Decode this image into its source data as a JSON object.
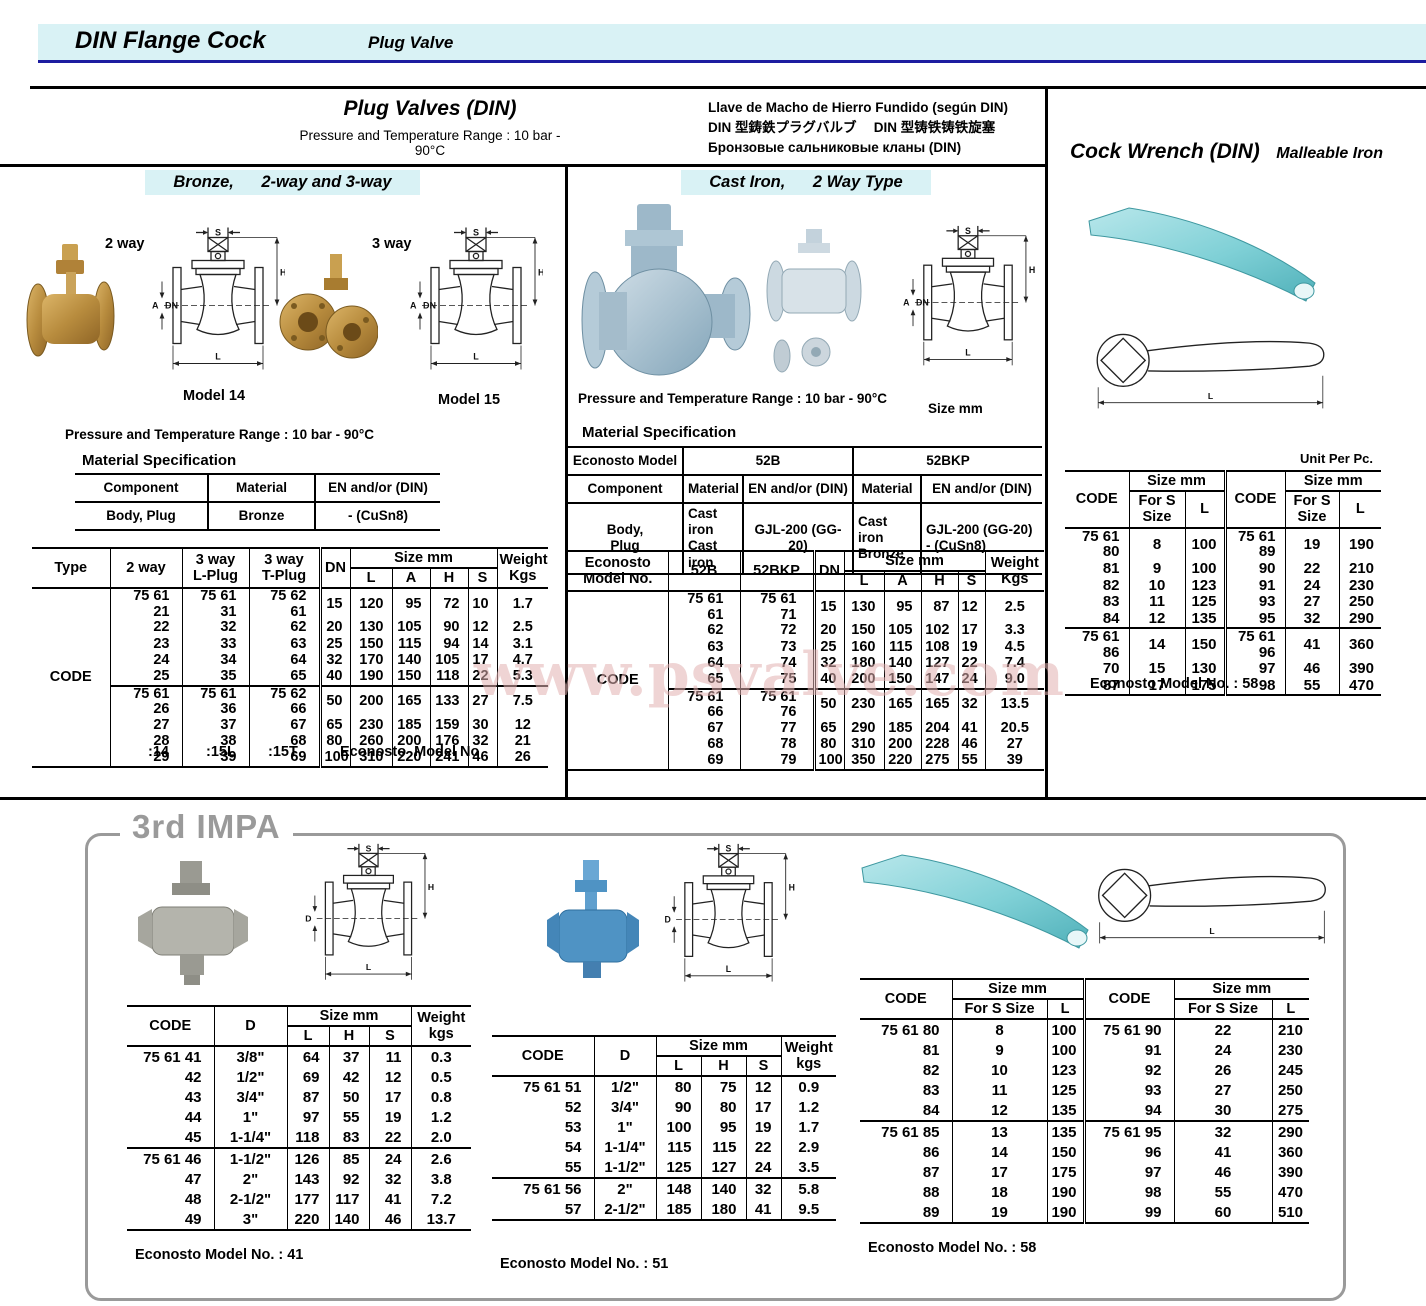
{
  "dims": {
    "s": "S",
    "h": "H",
    "a": "A",
    "dn": "DN",
    "d": "D",
    "l": "L"
  },
  "header": {
    "band_title": "DIN Flange Cock",
    "band_subtitle": "Plug Valve"
  },
  "watermark": "www.psvalve.com",
  "top": {
    "title": "Plug Valves (DIN)",
    "pressure": "Pressure and Temperature Range : 10 bar - 90°C",
    "lang1": "Llave de Macho de Hierro Fundido (según DIN)",
    "lang2": "DIN 型鋳鉄プラグバルブ　 DIN 型铸铁铸铁旋塞",
    "lang3": "Бронзовые сальниковые кланы (DIN)"
  },
  "bronze": {
    "band": "Bronze,      2-way and 3-way",
    "two_way": "2 way",
    "three_way": "3 way",
    "model14": "Model 14",
    "model15": "Model 15",
    "pressure": "Pressure and Temperature Range : 10 bar - 90°C",
    "material_title": "Material Specification",
    "mat_h1": "Component",
    "mat_h2": "Material",
    "mat_h3": "EN and/or (DIN)",
    "mat_r1": "Body, Plug",
    "mat_r2": "Bronze",
    "mat_r3": "- (CuSn8)",
    "col_type": "Type",
    "col_2way": "2 way",
    "col_3way_l": "3 way\nL-Plug",
    "col_3way_t": "3 way\nT-Plug",
    "col_dn": "DN",
    "col_size": "Size mm",
    "col_l": "L",
    "col_a": "A",
    "col_h": "H",
    "col_s": "S",
    "col_weight": "Weight\nKgs",
    "code_label": "CODE",
    "rows": [
      [
        "75 61 21",
        "75 61 31",
        "75 62 61",
        "15",
        "120",
        "95",
        "72",
        "10",
        "1.7"
      ],
      [
        "22",
        "32",
        "62",
        "20",
        "130",
        "105",
        "90",
        "12",
        "2.5"
      ],
      [
        "23",
        "33",
        "63",
        "25",
        "150",
        "115",
        "94",
        "14",
        "3.1"
      ],
      [
        "24",
        "34",
        "64",
        "32",
        "170",
        "140",
        "105",
        "17",
        "4.7"
      ],
      [
        "25",
        "35",
        "65",
        "40",
        "190",
        "150",
        "118",
        "22",
        "5.3"
      ],
      [
        "75 61 26",
        "75 61 36",
        "75 62 66",
        "50",
        "200",
        "165",
        "133",
        "27",
        "7.5"
      ],
      [
        "27",
        "37",
        "67",
        "65",
        "230",
        "185",
        "159",
        "30",
        "12"
      ],
      [
        "28",
        "38",
        "68",
        "80",
        "260",
        "200",
        "176",
        "32",
        "21"
      ],
      [
        "29",
        "39",
        "69",
        "100",
        "310",
        "220",
        "241",
        "46",
        "26"
      ]
    ],
    "foot_14": ":14",
    "foot_15l": ":15L",
    "foot_15t": ":15T",
    "foot_label": "Econosto  Model No"
  },
  "cast": {
    "band": "Cast Iron,      2 Way Type",
    "pressure": "Pressure and Temperature Range : 10 bar - 90°C",
    "size_note": "Size mm",
    "material_title": "Material Specification",
    "mat_model": "Econosto Model",
    "mat_52b": "52B",
    "mat_52bkp": "52BKP",
    "mat_component": "Component",
    "mat_material": "Material",
    "mat_en": "EN and/or (DIN)",
    "mat_body": "Body,\nPlug",
    "mat_v1": "Cast iron\nCast iron",
    "mat_v2": "GJL-200 (GG-20)",
    "mat_v3": "Cast iron\nBronze",
    "mat_v4": "GJL-200 (GG-20)\n- (CuSn8)",
    "col_model": "Econosto\nModel  No.",
    "col_52b": "52B",
    "col_52bkp": "52BKP",
    "col_dn": "DN",
    "col_size": "Size mm",
    "col_l": "L",
    "col_a": "A",
    "col_h": "H",
    "col_s": "S",
    "col_weight": "Weight\nKgs",
    "code_label": "CODE",
    "rows": [
      [
        "75 61 61",
        "75 61 71",
        "15",
        "130",
        "95",
        "87",
        "12",
        "2.5"
      ],
      [
        "62",
        "72",
        "20",
        "150",
        "105",
        "102",
        "17",
        "3.3"
      ],
      [
        "63",
        "73",
        "25",
        "160",
        "115",
        "108",
        "19",
        "4.5"
      ],
      [
        "64",
        "74",
        "32",
        "180",
        "140",
        "127",
        "22",
        "7.4"
      ],
      [
        "65",
        "75",
        "40",
        "200",
        "150",
        "147",
        "24",
        "9.0"
      ],
      [
        "75 61 66",
        "75 61 76",
        "50",
        "230",
        "165",
        "165",
        "32",
        "13.5"
      ],
      [
        "67",
        "77",
        "65",
        "290",
        "185",
        "204",
        "41",
        "20.5"
      ],
      [
        "68",
        "78",
        "80",
        "310",
        "200",
        "228",
        "46",
        "27"
      ],
      [
        "69",
        "79",
        "100",
        "350",
        "220",
        "275",
        "55",
        "39"
      ]
    ]
  },
  "wrench": {
    "title": "Cock Wrench (DIN)",
    "subtitle": "Malleable Iron",
    "unit": "Unit Per Pc.",
    "col_code": "CODE",
    "col_size": "Size mm",
    "col_fors": "For S\nSize",
    "col_l": "L",
    "rows": [
      [
        "75 61 80",
        "8",
        "100",
        "75 61 89",
        "19",
        "190"
      ],
      [
        "81",
        "9",
        "100",
        "90",
        "22",
        "210"
      ],
      [
        "82",
        "10",
        "123",
        "91",
        "24",
        "230"
      ],
      [
        "83",
        "11",
        "125",
        "93",
        "27",
        "250"
      ],
      [
        "84",
        "12",
        "135",
        "95",
        "32",
        "290"
      ],
      [
        "75 61 86",
        "14",
        "150",
        "75 61 96",
        "41",
        "360"
      ],
      [
        "70",
        "15",
        "130",
        "97",
        "46",
        "390"
      ],
      [
        "87",
        "17",
        "175",
        "98",
        "55",
        "470"
      ]
    ],
    "footer": "Econosto Model No. : 58"
  },
  "impa": {
    "title": "3rd IMPA",
    "col_code": "CODE",
    "col_d": "D",
    "col_size": "Size mm",
    "col_l": "L",
    "col_h": "H",
    "col_s": "S",
    "col_weight": "Weight\nkgs",
    "col_fors": "For S Size",
    "left_rows": [
      [
        "75 61 41",
        "3/8\"",
        "64",
        "37",
        "11",
        "0.3"
      ],
      [
        "42",
        "1/2\"",
        "69",
        "42",
        "12",
        "0.5"
      ],
      [
        "43",
        "3/4\"",
        "87",
        "50",
        "17",
        "0.8"
      ],
      [
        "44",
        "1\"",
        "97",
        "55",
        "19",
        "1.2"
      ],
      [
        "45",
        "1-1/4\"",
        "118",
        "83",
        "22",
        "2.0"
      ],
      [
        "75 61 46",
        "1-1/2\"",
        "126",
        "85",
        "24",
        "2.6"
      ],
      [
        "47",
        "2\"",
        "143",
        "92",
        "32",
        "3.8"
      ],
      [
        "48",
        "2-1/2\"",
        "177",
        "117",
        "41",
        "7.2"
      ],
      [
        "49",
        "3\"",
        "220",
        "140",
        "46",
        "13.7"
      ]
    ],
    "left_footer": "Econosto Model No. : 41",
    "mid_rows": [
      [
        "75 61 51",
        "1/2\"",
        "80",
        "75",
        "12",
        "0.9"
      ],
      [
        "52",
        "3/4\"",
        "90",
        "80",
        "17",
        "1.2"
      ],
      [
        "53",
        "1\"",
        "100",
        "95",
        "19",
        "1.7"
      ],
      [
        "54",
        "1-1/4\"",
        "115",
        "115",
        "22",
        "2.9"
      ],
      [
        "55",
        "1-1/2\"",
        "125",
        "127",
        "24",
        "3.5"
      ],
      [
        "75 61 56",
        "2\"",
        "148",
        "140",
        "32",
        "5.8"
      ],
      [
        "57",
        "2-1/2\"",
        "185",
        "180",
        "41",
        "9.5"
      ]
    ],
    "mid_footer": "Econosto Model No. : 51",
    "right_rows": [
      [
        "75 61 80",
        "8",
        "100",
        "75 61 90",
        "22",
        "210"
      ],
      [
        "81",
        "9",
        "100",
        "91",
        "24",
        "230"
      ],
      [
        "82",
        "10",
        "123",
        "92",
        "26",
        "245"
      ],
      [
        "83",
        "11",
        "125",
        "93",
        "27",
        "250"
      ],
      [
        "84",
        "12",
        "135",
        "94",
        "30",
        "275"
      ],
      [
        "75 61 85",
        "13",
        "135",
        "75 61 95",
        "32",
        "290"
      ],
      [
        "86",
        "14",
        "150",
        "96",
        "41",
        "360"
      ],
      [
        "87",
        "17",
        "175",
        "97",
        "46",
        "390"
      ],
      [
        "88",
        "18",
        "190",
        "98",
        "55",
        "470"
      ],
      [
        "89",
        "19",
        "190",
        "99",
        "60",
        "510"
      ]
    ],
    "right_footer": "Econosto Model No. : 58"
  }
}
